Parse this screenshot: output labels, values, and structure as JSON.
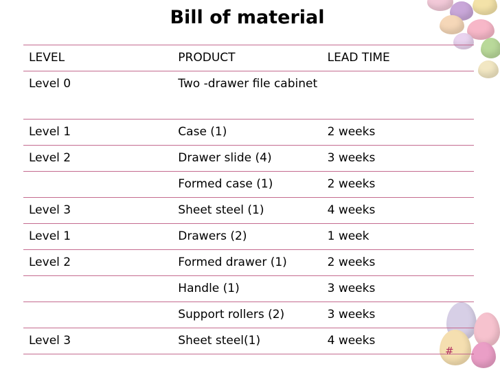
{
  "slide": {
    "title": "Bill of material",
    "slide_number": "#"
  },
  "table": {
    "headers": [
      "LEVEL",
      "PRODUCT",
      "LEAD TIME"
    ],
    "rows": [
      [
        "Level 0",
        "Two -drawer file cabinet",
        ""
      ],
      [
        "Level 1",
        "Case (1)",
        "2 weeks"
      ],
      [
        "Level 2",
        "Drawer slide (4)",
        "3 weeks"
      ],
      [
        "",
        "Formed case (1)",
        "2 weeks"
      ],
      [
        "Level 3",
        "Sheet steel (1)",
        "4 weeks"
      ],
      [
        "Level 1",
        "Drawers (2)",
        "1 week"
      ],
      [
        "Level 2",
        "Formed drawer (1)",
        "2 weeks"
      ],
      [
        "",
        "Handle (1)",
        "3 weeks"
      ],
      [
        "",
        "Support rollers (2)",
        "3 weeks"
      ],
      [
        "Level 3",
        "Sheet steel(1)",
        "4 weeks"
      ]
    ]
  },
  "theme": {
    "border_color": "#c46a8e",
    "decoration": "candy-eggs-image"
  }
}
